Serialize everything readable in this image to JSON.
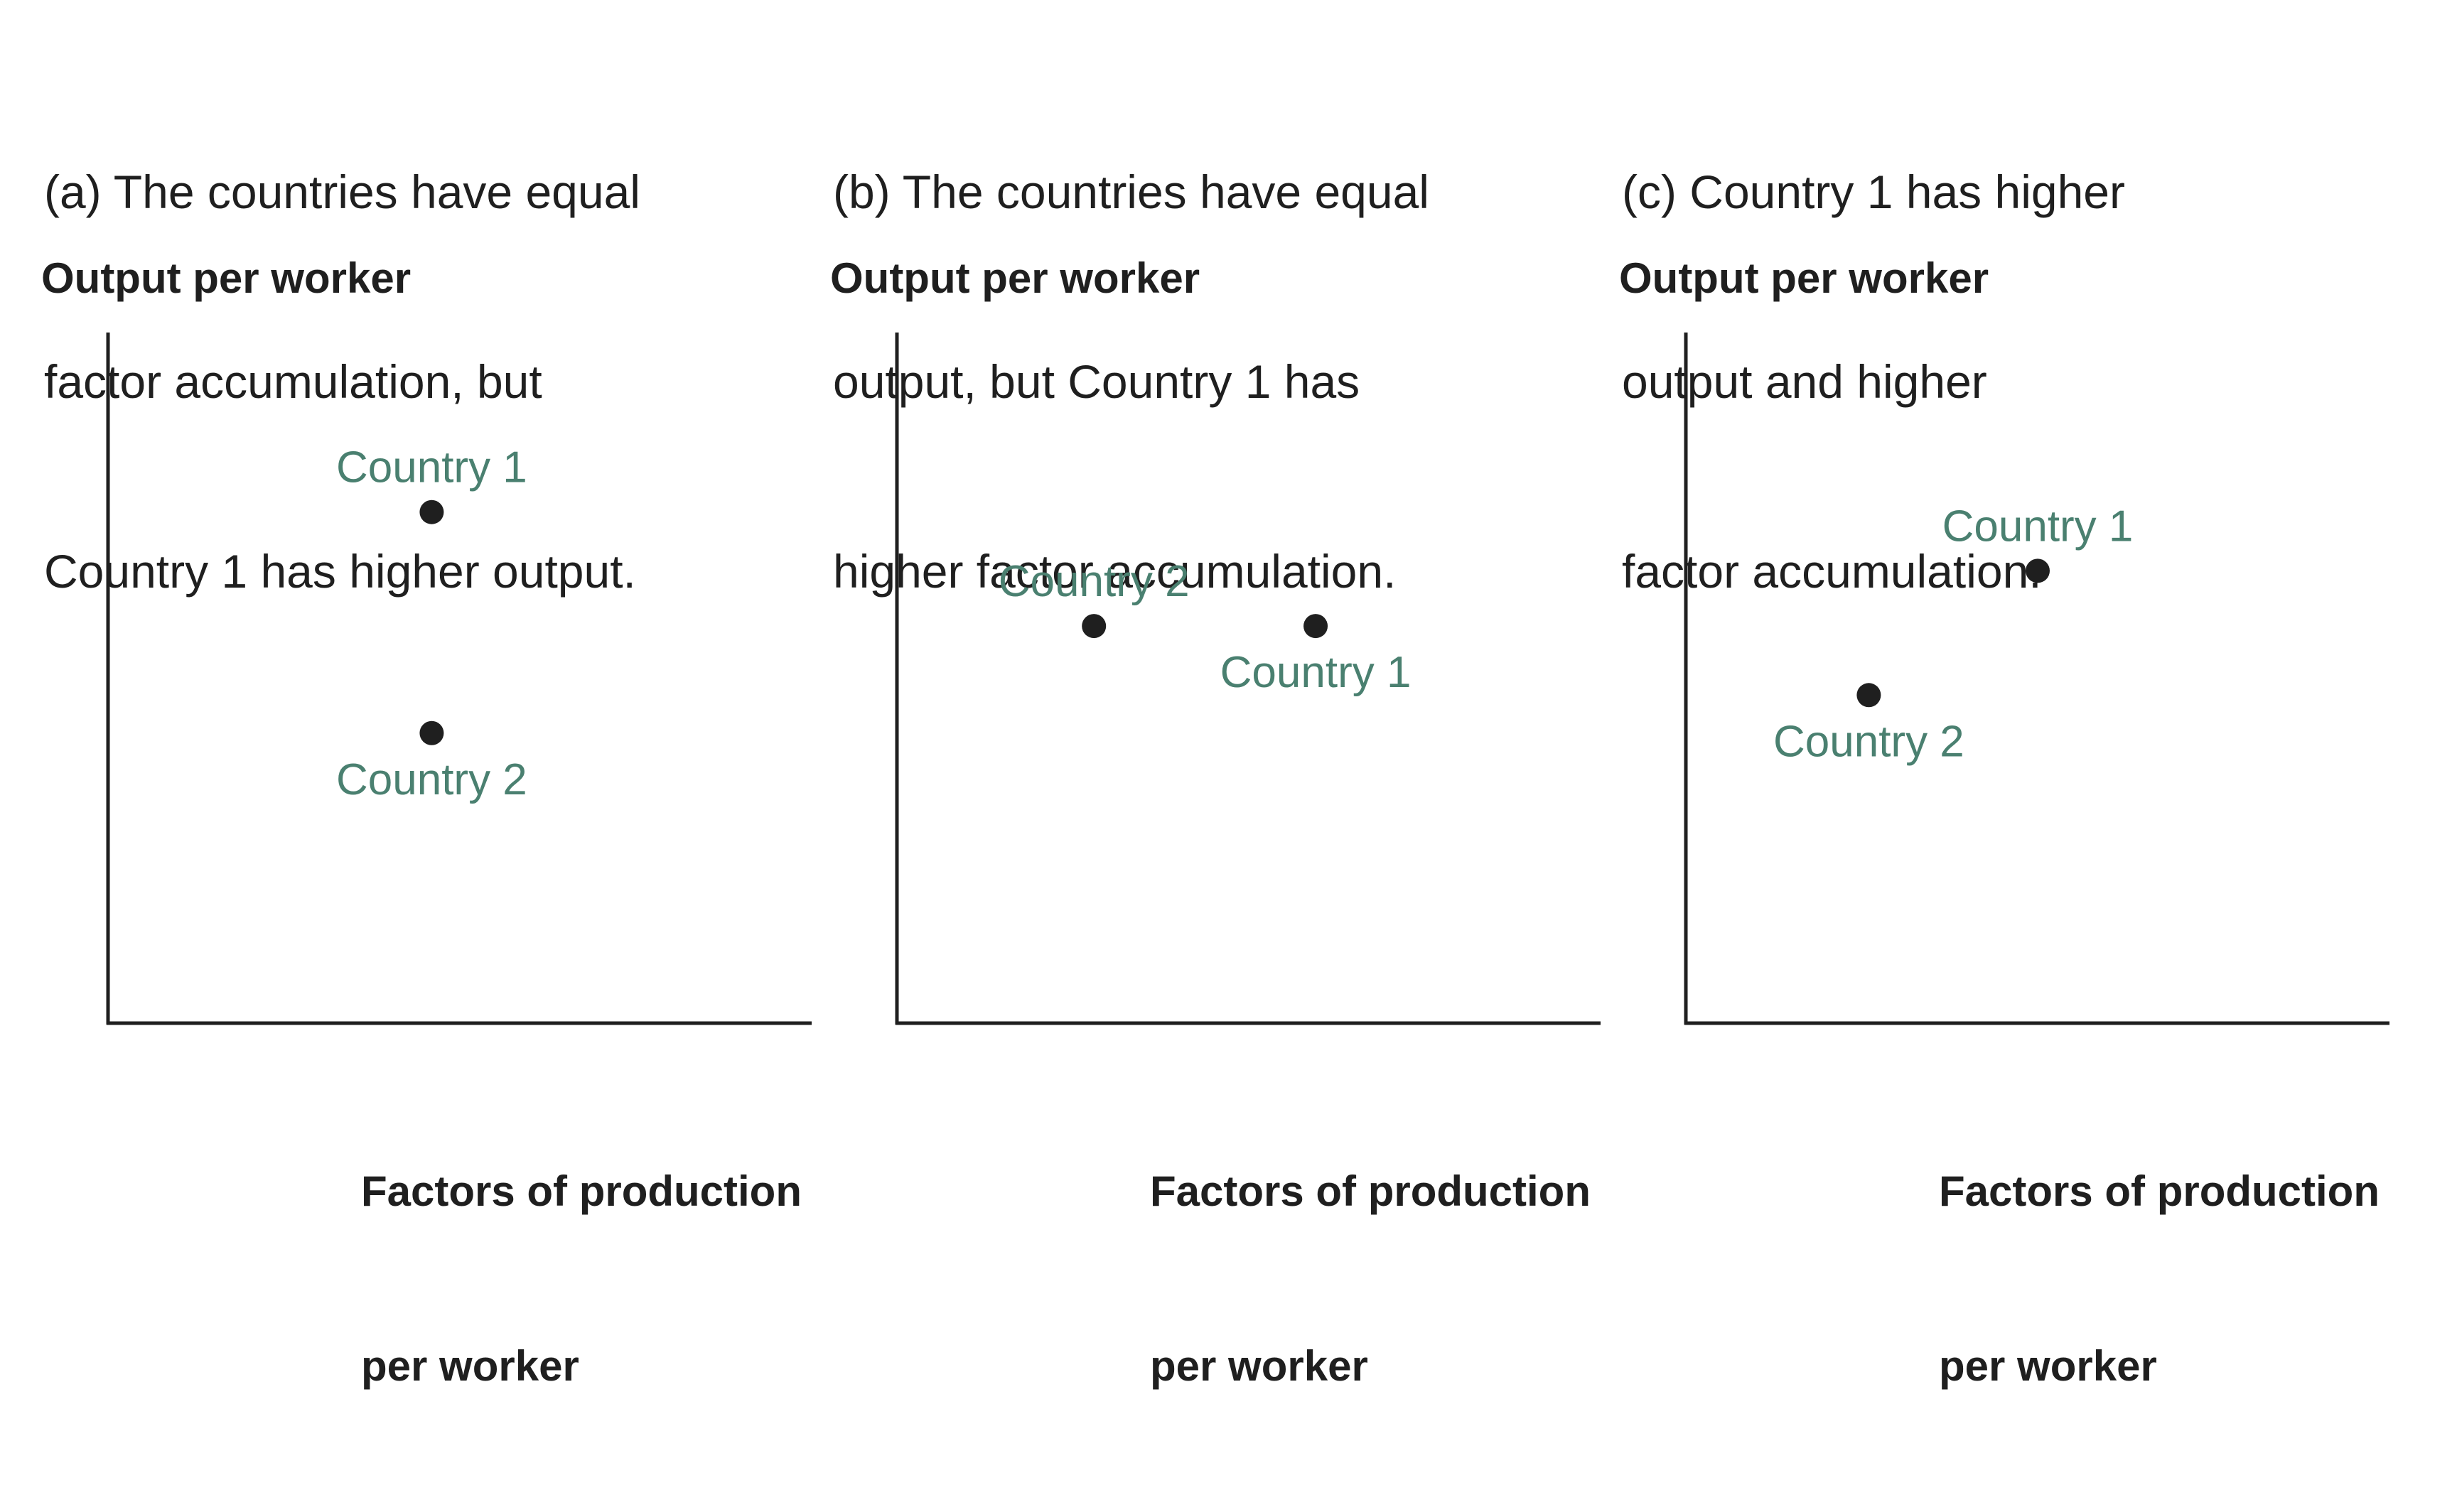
{
  "panels": [
    {
      "caption": [
        "(a) The countries have equal",
        "factor accumulation, but",
        "Country 1 has higher output."
      ],
      "ylabel": "Output per worker",
      "xlabel": [
        "Factors of production",
        "per worker"
      ]
    },
    {
      "caption": [
        "(b) The countries have equal",
        "output, but Country 1 has",
        "higher factor accumulation."
      ],
      "ylabel": "Output per worker",
      "xlabel": [
        "Factors of production",
        "per worker"
      ]
    },
    {
      "caption": [
        "(c) Country 1 has higher",
        "output and higher",
        "factor accumulation."
      ],
      "ylabel": "Output per worker",
      "xlabel": [
        "Factors of production",
        "per worker"
      ]
    }
  ],
  "colors": {
    "axis": "#1f1f1f",
    "point": "#1f1f1f",
    "label": "#4a8070"
  },
  "chart_data": [
    {
      "type": "scatter",
      "title": "(a) The countries have equal factor accumulation, but Country 1 has higher output.",
      "xlabel": "Factors of production per worker",
      "ylabel": "Output per worker",
      "xlim": [
        0,
        100
      ],
      "ylim": [
        0,
        100
      ],
      "grid": false,
      "ticks": false,
      "points": [
        {
          "label": "Country 1",
          "x": 46,
          "y": 74,
          "label_pos": "above"
        },
        {
          "label": "Country 2",
          "x": 46,
          "y": 42,
          "label_pos": "below"
        }
      ]
    },
    {
      "type": "scatter",
      "title": "(b) The countries have equal output, but Country 1 has higher factor accumulation.",
      "xlabel": "Factors of production per worker",
      "ylabel": "Output per worker",
      "xlim": [
        0,
        100
      ],
      "ylim": [
        0,
        100
      ],
      "grid": false,
      "ticks": false,
      "points": [
        {
          "label": "Country 2",
          "x": 28,
          "y": 57.5,
          "label_pos": "above"
        },
        {
          "label": "Country 1",
          "x": 59.5,
          "y": 57.5,
          "label_pos": "below"
        }
      ]
    },
    {
      "type": "scatter",
      "title": "(c) Country 1 has higher output and higher factor accumulation.",
      "xlabel": "Factors of production per worker",
      "ylabel": "Output per worker",
      "xlim": [
        0,
        100
      ],
      "ylim": [
        0,
        100
      ],
      "grid": false,
      "ticks": false,
      "points": [
        {
          "label": "Country 1",
          "x": 50,
          "y": 65.5,
          "label_pos": "above"
        },
        {
          "label": "Country 2",
          "x": 26,
          "y": 47.5,
          "label_pos": "below"
        }
      ]
    }
  ]
}
